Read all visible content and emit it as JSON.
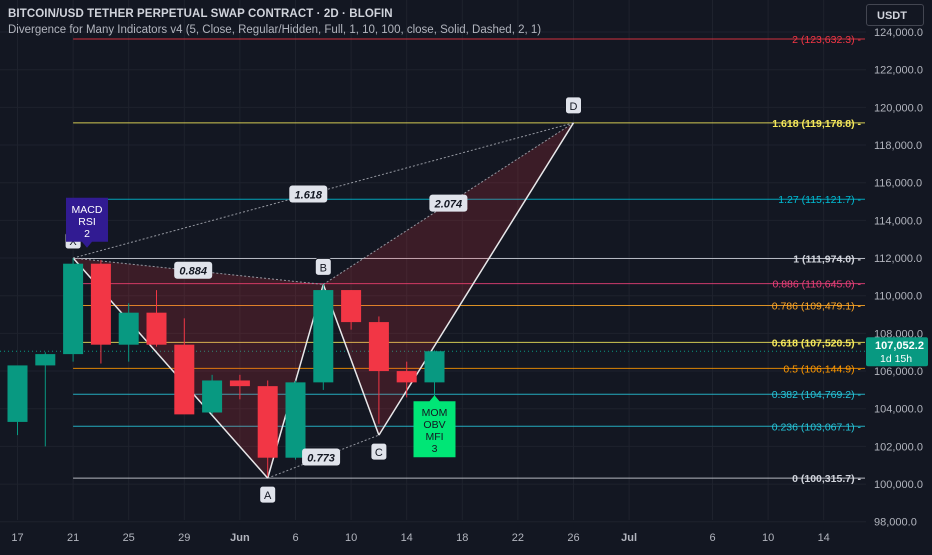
{
  "header": {
    "title": "BITCOIN/USD TETHER PERPETUAL SWAP CONTRACT · 2D · BLOFIN",
    "subtitle": "Divergence for Many Indicators v4 (5, Close, Regular/Hidden, Full, 1, 10, 100, close, Solid, Dashed, 2, 1)"
  },
  "toolbar": {
    "currency": "USDT"
  },
  "chart_data": {
    "type": "candlestick",
    "title": "BITCOIN/USD TETHER PERPETUAL SWAP CONTRACT · 2D · BLOFIN",
    "x_tick_labels": [
      "17",
      "21",
      "25",
      "29",
      "Jun",
      "6",
      "10",
      "14",
      "18",
      "22",
      "26",
      "Jul",
      "6",
      "10",
      "14"
    ],
    "y_tick_labels": [
      "98,000.0",
      "100,000.0",
      "102,000.0",
      "104,000.0",
      "106,000.0",
      "108,000.0",
      "110,000.0",
      "112,000.0",
      "114,000.0",
      "116,000.0",
      "118,000.0",
      "120,000.0",
      "122,000.0",
      "124,000.0"
    ],
    "ylim": [
      96500,
      125700
    ],
    "colors": {
      "up": "#089981",
      "down": "#f23645"
    },
    "candles": [
      {
        "date": "May 17",
        "open": 103300,
        "high": 106200,
        "low": 102600,
        "close": 106300
      },
      {
        "date": "May 19",
        "open": 106300,
        "high": 107000,
        "low": 102000,
        "close": 106900
      },
      {
        "date": "May 21",
        "open": 106900,
        "high": 112000,
        "low": 106500,
        "close": 111700
      },
      {
        "date": "May 23",
        "open": 111700,
        "high": 111900,
        "low": 106400,
        "close": 107400
      },
      {
        "date": "May 25",
        "open": 107400,
        "high": 109600,
        "low": 106500,
        "close": 109100
      },
      {
        "date": "May 27",
        "open": 109100,
        "high": 110300,
        "low": 107300,
        "close": 107400
      },
      {
        "date": "May 29",
        "open": 107400,
        "high": 108800,
        "low": 103800,
        "close": 103700
      },
      {
        "date": "May 31",
        "open": 103800,
        "high": 105800,
        "low": 103700,
        "close": 105500
      },
      {
        "date": "Jun 2",
        "open": 105500,
        "high": 105800,
        "low": 104500,
        "close": 105200
      },
      {
        "date": "Jun 4",
        "open": 105200,
        "high": 105500,
        "low": 100400,
        "close": 101400
      },
      {
        "date": "Jun 6",
        "open": 101400,
        "high": 105500,
        "low": 101300,
        "close": 105400
      },
      {
        "date": "Jun 8",
        "open": 105400,
        "high": 110600,
        "low": 105000,
        "close": 110300
      },
      {
        "date": "Jun 10",
        "open": 110300,
        "high": 110300,
        "low": 108200,
        "close": 108600
      },
      {
        "date": "Jun 12",
        "open": 108600,
        "high": 108900,
        "low": 103200,
        "close": 106000
      },
      {
        "date": "Jun 14",
        "open": 106000,
        "high": 106500,
        "low": 104600,
        "close": 105400
      },
      {
        "date": "Jun 16",
        "open": 105400,
        "high": 107100,
        "low": 104600,
        "close": 107052.2
      }
    ],
    "current_price": {
      "value": 107052.2,
      "label": "107,052.2",
      "countdown": "1d 15h"
    },
    "fib_levels": [
      {
        "ratio": "2",
        "value": 123632.3,
        "label": "2 (123,632.3)",
        "color": "#f23645"
      },
      {
        "ratio": "1.618",
        "value": 119178.8,
        "label": "1.618 (119,178.8)",
        "color": "#f5e85b"
      },
      {
        "ratio": "1.27",
        "value": 115121.7,
        "label": "1.27 (115,121.7)",
        "color": "#00bcd4"
      },
      {
        "ratio": "1",
        "value": 111974.0,
        "label": "1 (111,974.0)",
        "color": "#d1d4dc"
      },
      {
        "ratio": "0.886",
        "value": 110645.0,
        "label": "0.886 (110,645.0)",
        "color": "#ec407a"
      },
      {
        "ratio": "0.786",
        "value": 109479.1,
        "label": "0.786 (109,479.1)",
        "color": "#ffa726"
      },
      {
        "ratio": "0.618",
        "value": 107520.5,
        "label": "0.618 (107,520.5)",
        "color": "#f5e85b"
      },
      {
        "ratio": "0.5",
        "value": 106144.9,
        "label": "0.5 (106,144.9)",
        "color": "#ff9800"
      },
      {
        "ratio": "0.382",
        "value": 104769.2,
        "label": "0.382 (104,769.2)",
        "color": "#26c6da"
      },
      {
        "ratio": "0.236",
        "value": 103067.1,
        "label": "0.236 (103,067.1)",
        "color": "#26c6da"
      },
      {
        "ratio": "0",
        "value": 100315.7,
        "label": "0 (100,315.7)",
        "color": "#d1d4dc"
      }
    ],
    "harmonic_points": [
      {
        "label": "X",
        "date": "May 21",
        "value": 112000
      },
      {
        "label": "A",
        "date": "Jun 4",
        "value": 100315.7
      },
      {
        "label": "B",
        "date": "Jun 8",
        "value": 110600
      },
      {
        "label": "C",
        "date": "Jun 12",
        "value": 102600
      },
      {
        "label": "D",
        "date": "Jun 26",
        "value": 119178.8
      }
    ],
    "ratio_labels": [
      "0.884",
      "0.773",
      "1.618",
      "2.074"
    ],
    "divergence_labels": [
      {
        "text": [
          "MACD",
          "RSI",
          "2"
        ],
        "color": "#311b92"
      },
      {
        "text": [
          "MOM",
          "OBV",
          "MFI",
          "3"
        ],
        "color": "#00e676"
      }
    ]
  }
}
